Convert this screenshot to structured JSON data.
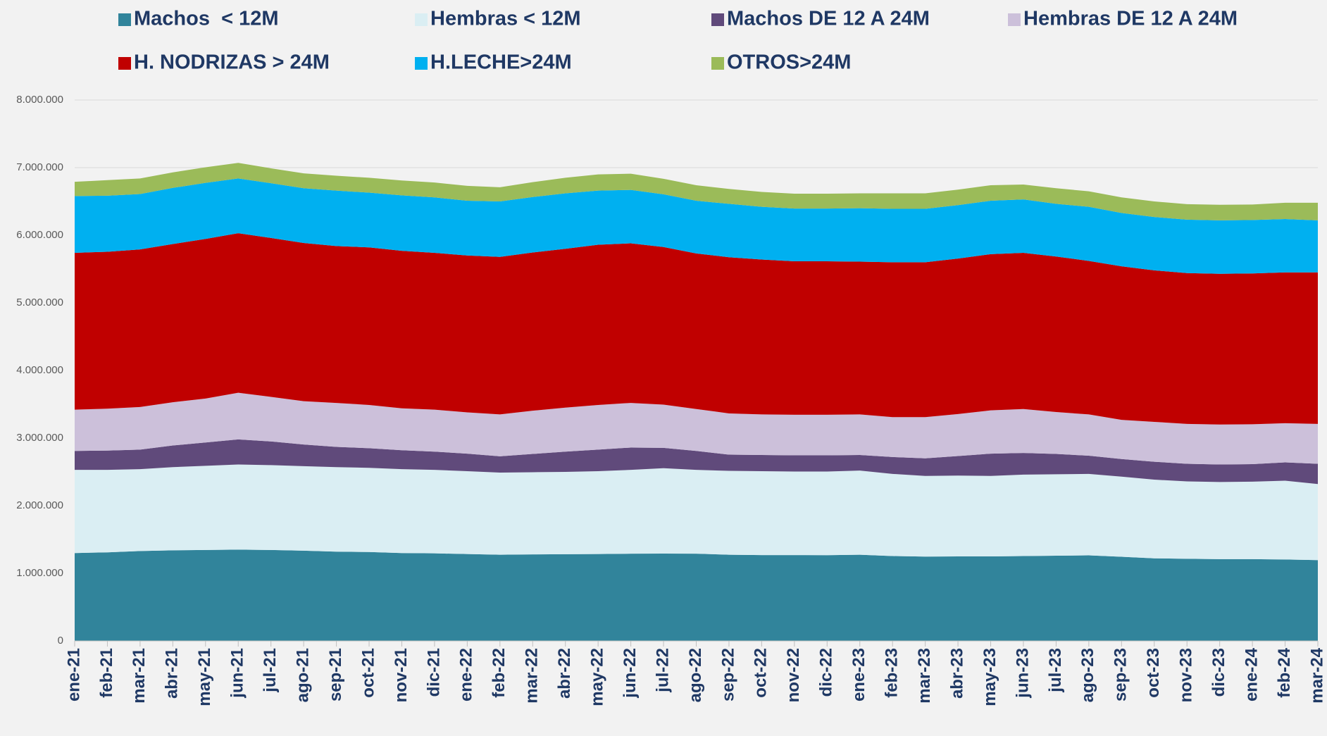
{
  "chart_data": {
    "type": "stacked_area",
    "categories": [
      "ene-21",
      "feb-21",
      "mar-21",
      "abr-21",
      "may-21",
      "jun-21",
      "jul-21",
      "ago-21",
      "sep-21",
      "oct-21",
      "nov-21",
      "dic-21",
      "ene-22",
      "feb-22",
      "mar-22",
      "abr-22",
      "may-22",
      "jun-22",
      "jul-22",
      "ago-22",
      "sep-22",
      "oct-22",
      "nov-22",
      "dic-22",
      "ene-23",
      "feb-23",
      "mar-23",
      "abr-23",
      "may-23",
      "jun-23",
      "jul-23",
      "ago-23",
      "sep-23",
      "oct-23",
      "nov-23",
      "dic-23",
      "ene-24",
      "feb-24",
      "mar-24"
    ],
    "series": [
      {
        "name": "Machos  < 12M",
        "color": "#31849b",
        "values": [
          1300000,
          1310000,
          1330000,
          1340000,
          1345000,
          1350000,
          1345000,
          1335000,
          1320000,
          1315000,
          1300000,
          1295000,
          1285000,
          1275000,
          1280000,
          1282000,
          1285000,
          1290000,
          1292000,
          1290000,
          1275000,
          1270000,
          1270000,
          1268000,
          1275000,
          1255000,
          1248000,
          1250000,
          1250000,
          1255000,
          1260000,
          1265000,
          1245000,
          1222000,
          1215000,
          1210000,
          1210000,
          1205000,
          1195000
        ]
      },
      {
        "name": "Hembras < 12M",
        "color": "#daeef3",
        "values": [
          1230000,
          1220000,
          1210000,
          1230000,
          1245000,
          1260000,
          1255000,
          1250000,
          1250000,
          1245000,
          1240000,
          1235000,
          1225000,
          1215000,
          1215000,
          1218000,
          1225000,
          1240000,
          1263000,
          1240000,
          1240000,
          1240000,
          1235000,
          1237000,
          1245000,
          1215000,
          1192000,
          1195000,
          1190000,
          1205000,
          1205000,
          1205000,
          1185000,
          1163000,
          1145000,
          1140000,
          1145000,
          1165000,
          1125000
        ]
      },
      {
        "name": "Machos DE 12 A 24M",
        "color": "#604a7b",
        "values": [
          280000,
          285000,
          290000,
          320000,
          345000,
          370000,
          350000,
          320000,
          300000,
          290000,
          280000,
          270000,
          260000,
          240000,
          270000,
          300000,
          320000,
          330000,
          300000,
          280000,
          240000,
          240000,
          240000,
          240000,
          230000,
          250000,
          260000,
          290000,
          330000,
          320000,
          300000,
          270000,
          260000,
          265000,
          260000,
          260000,
          260000,
          270000,
          300000
        ]
      },
      {
        "name": "Hembras DE 12 A 24M",
        "color": "#ccc0da",
        "values": [
          610000,
          620000,
          630000,
          640000,
          650000,
          690000,
          660000,
          640000,
          650000,
          640000,
          620000,
          620000,
          610000,
          620000,
          640000,
          650000,
          660000,
          660000,
          640000,
          620000,
          610000,
          600000,
          600000,
          600000,
          600000,
          590000,
          610000,
          620000,
          640000,
          650000,
          620000,
          610000,
          580000,
          590000,
          590000,
          590000,
          590000,
          580000,
          590000
        ]
      },
      {
        "name": "H. NODRIZAS > 24M",
        "color": "#c00000",
        "values": [
          2320000,
          2320000,
          2330000,
          2340000,
          2360000,
          2360000,
          2350000,
          2340000,
          2320000,
          2330000,
          2330000,
          2320000,
          2320000,
          2330000,
          2340000,
          2350000,
          2370000,
          2360000,
          2330000,
          2300000,
          2310000,
          2290000,
          2270000,
          2270000,
          2260000,
          2290000,
          2290000,
          2300000,
          2310000,
          2310000,
          2300000,
          2270000,
          2270000,
          2240000,
          2230000,
          2230000,
          2230000,
          2230000,
          2240000
        ]
      },
      {
        "name": "H.LECHE>24M",
        "color": "#00b0f0",
        "values": [
          840000,
          830000,
          820000,
          830000,
          830000,
          810000,
          810000,
          810000,
          820000,
          810000,
          820000,
          820000,
          810000,
          820000,
          820000,
          820000,
          800000,
          790000,
          780000,
          780000,
          790000,
          780000,
          780000,
          780000,
          790000,
          790000,
          790000,
          790000,
          790000,
          790000,
          780000,
          800000,
          790000,
          790000,
          790000,
          790000,
          790000,
          790000,
          770000
        ]
      },
      {
        "name": "OTROS>24M",
        "color": "#9bbb59",
        "values": [
          210000,
          230000,
          230000,
          230000,
          230000,
          230000,
          220000,
          220000,
          220000,
          220000,
          220000,
          220000,
          220000,
          210000,
          220000,
          230000,
          240000,
          240000,
          230000,
          230000,
          220000,
          220000,
          220000,
          220000,
          220000,
          230000,
          230000,
          230000,
          230000,
          220000,
          230000,
          230000,
          230000,
          230000,
          230000,
          230000,
          230000,
          240000,
          260000
        ]
      }
    ],
    "ylim": [
      0,
      8000000
    ],
    "yticks": [
      0,
      {
        "value": 1000000,
        "label": "1.000.000"
      },
      {
        "value": 2000000,
        "label": "2.000.000"
      },
      {
        "value": 3000000,
        "label": "3.000.000"
      },
      {
        "value": 4000000,
        "label": "4.000.000"
      },
      {
        "value": 5000000,
        "label": "5.000.000"
      },
      {
        "value": 6000000,
        "label": "6.000.000"
      },
      {
        "value": 7000000,
        "label": "7.000.000"
      },
      {
        "value": 8000000,
        "label": "8.000.000"
      }
    ],
    "grid": true
  }
}
